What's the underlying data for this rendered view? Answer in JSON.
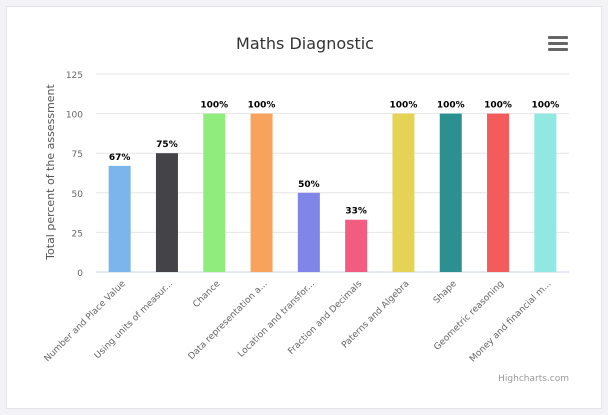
{
  "chart_data": {
    "type": "bar",
    "title": "Maths Diagnostic",
    "ylabel": "Total percent of the assessment",
    "xlabel": "",
    "ylim": [
      0,
      125
    ],
    "yticks": [
      0,
      25,
      50,
      75,
      100,
      125
    ],
    "grid": true,
    "legend": "none",
    "categories": [
      "Number and Place Value",
      "Using units of measur...",
      "Chance",
      "Data representation a...",
      "Location and transfor...",
      "Fraction and Decimals",
      "Paterns and Algebra",
      "Shape",
      "Geometric reasoning",
      "Money and financial m..."
    ],
    "values": [
      67,
      75,
      100,
      100,
      50,
      33,
      100,
      100,
      100,
      100
    ],
    "data_labels": [
      "67%",
      "75%",
      "100%",
      "100%",
      "50%",
      "33%",
      "100%",
      "100%",
      "100%",
      "100%"
    ],
    "colors": [
      "#7cb5ec",
      "#434348",
      "#90ed7d",
      "#f7a35c",
      "#8085e9",
      "#f15c80",
      "#e4d354",
      "#2b908f",
      "#f45b5b",
      "#91e8e1"
    ]
  },
  "credits": "Highcharts.com",
  "menu_icon": "hamburger-menu-icon"
}
